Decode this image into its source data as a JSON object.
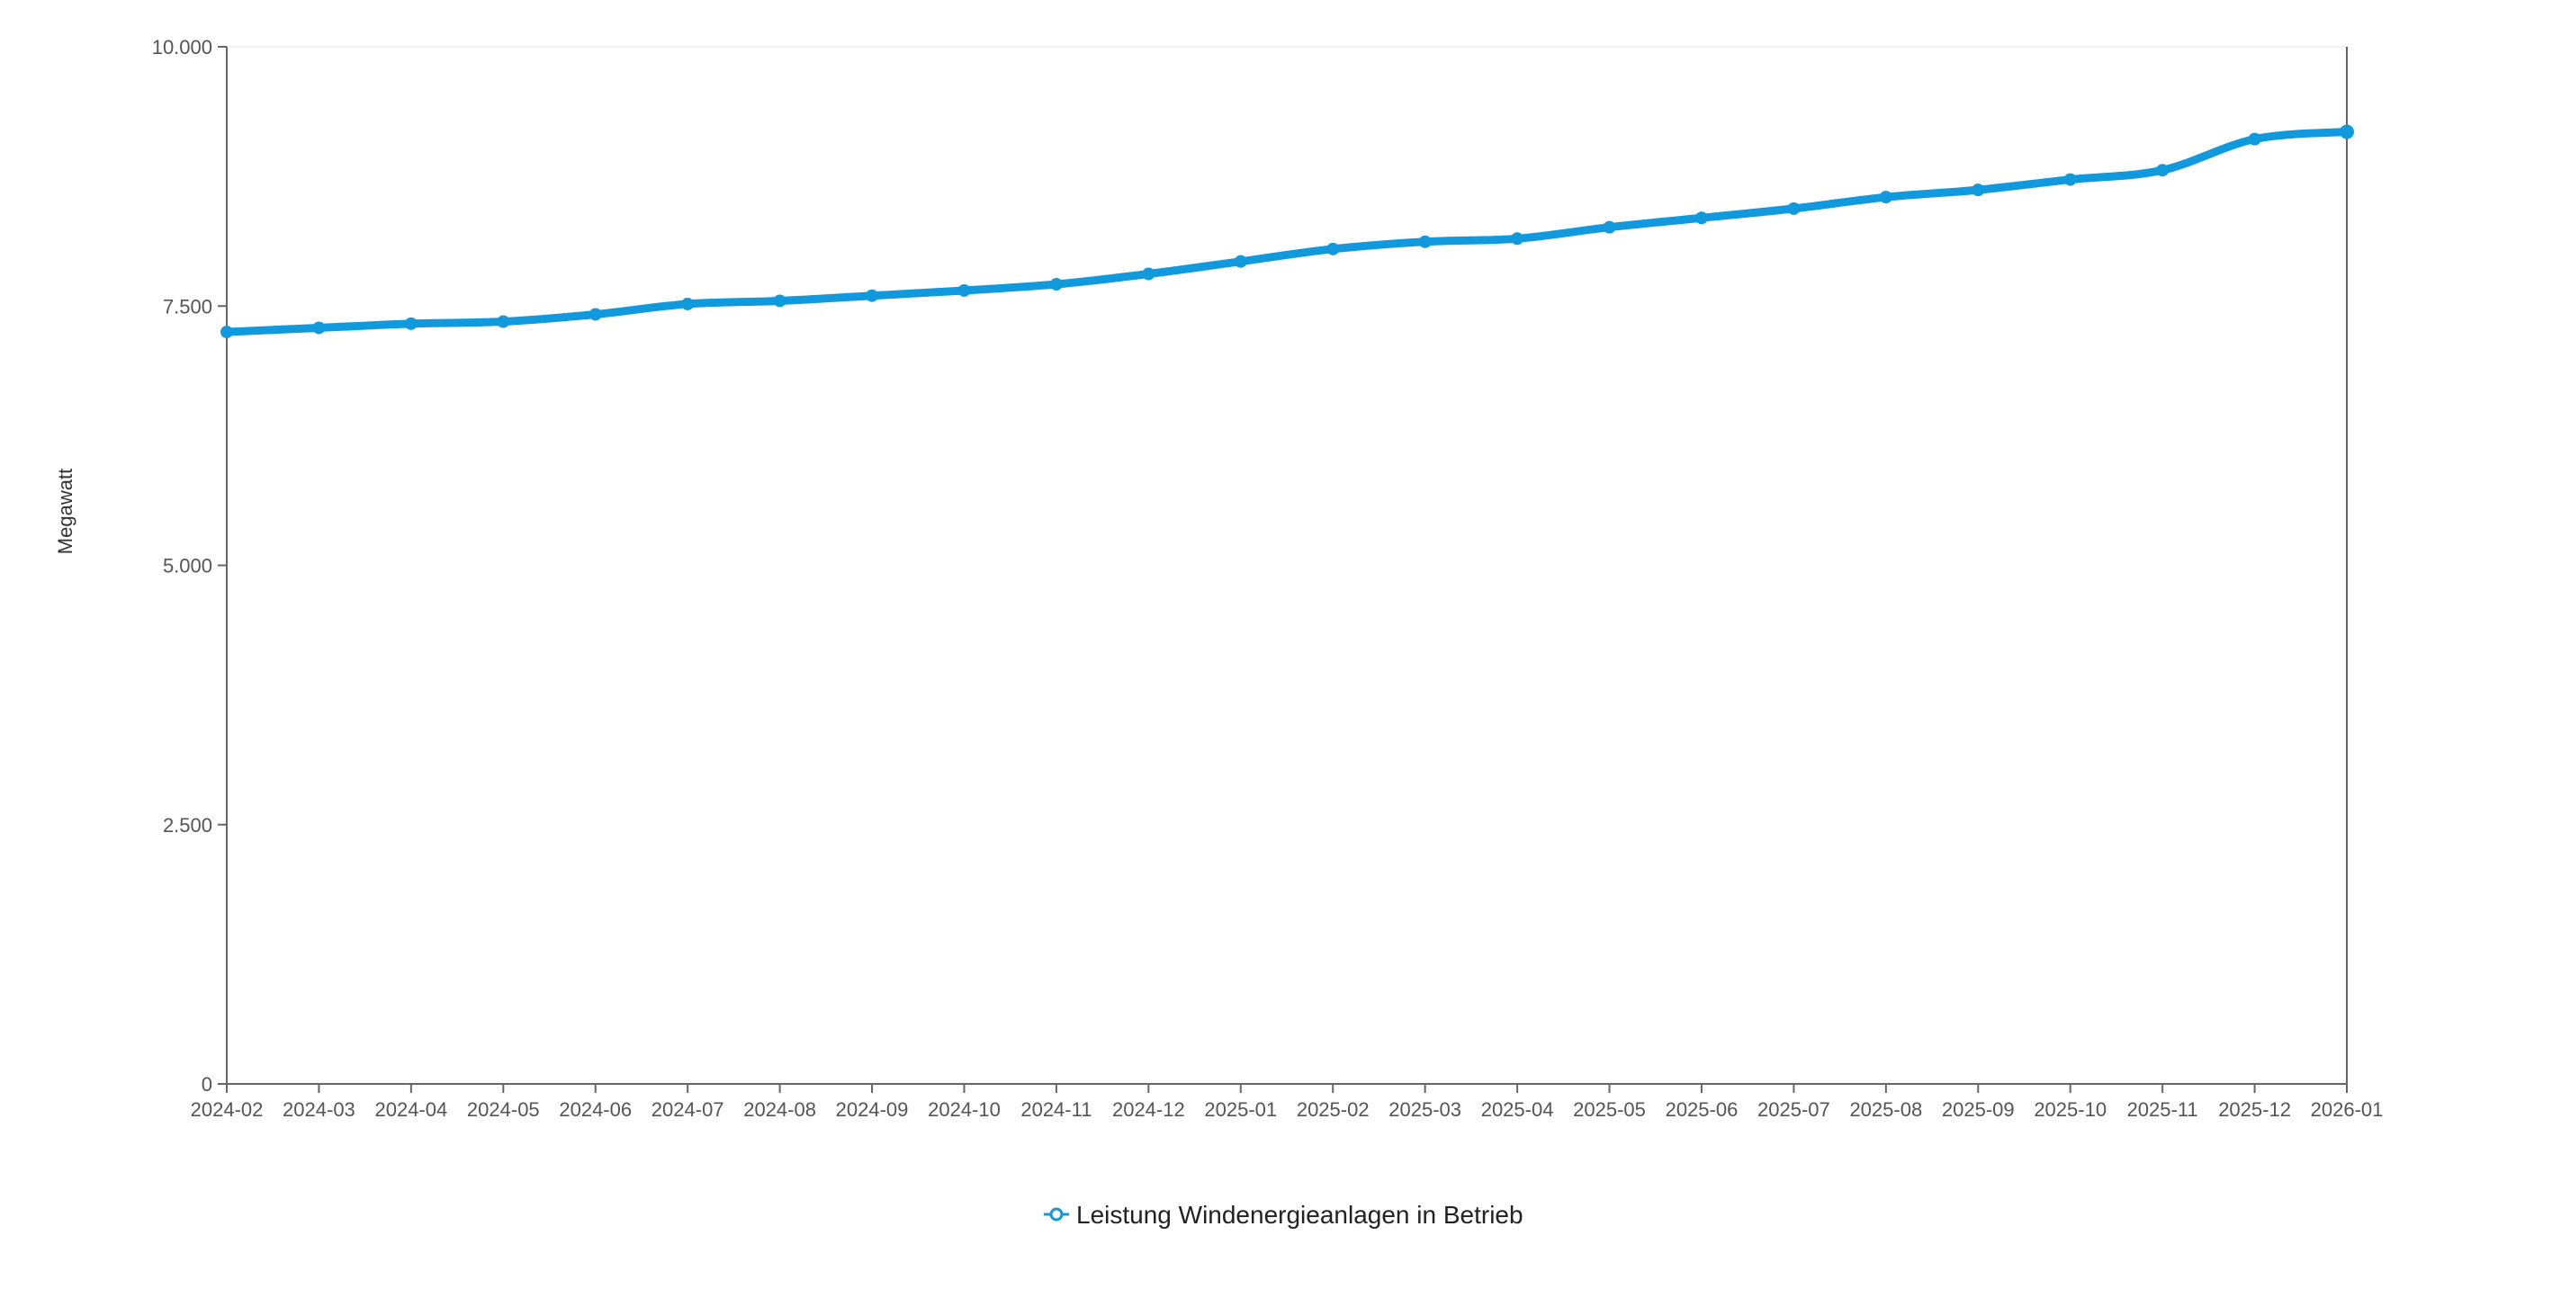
{
  "chart_data": {
    "type": "line",
    "title": "",
    "ylabel": "Megawatt",
    "xlabel": "",
    "ylim": [
      0,
      10000
    ],
    "y_ticks": [
      {
        "value": 0,
        "label": "0"
      },
      {
        "value": 2500,
        "label": "2.500"
      },
      {
        "value": 5000,
        "label": "5.000"
      },
      {
        "value": 7500,
        "label": "7.500"
      },
      {
        "value": 10000,
        "label": "10.000"
      }
    ],
    "categories": [
      "2024-02",
      "2024-03",
      "2024-04",
      "2024-05",
      "2024-06",
      "2024-07",
      "2024-08",
      "2024-09",
      "2024-10",
      "2024-11",
      "2024-12",
      "2025-01",
      "2025-02",
      "2025-03",
      "2025-04",
      "2025-05",
      "2025-06",
      "2025-07",
      "2025-08",
      "2025-09",
      "2025-10",
      "2025-11",
      "2025-12",
      "2026-01"
    ],
    "series": [
      {
        "name": "Leistung Windenergieanlagen in Betrieb",
        "color": "#1199dd",
        "values": [
          7250,
          7290,
          7330,
          7350,
          7420,
          7520,
          7550,
          7600,
          7650,
          7710,
          7810,
          7930,
          8050,
          8120,
          8150,
          8260,
          8350,
          8440,
          8550,
          8620,
          8720,
          8810,
          9110,
          9180
        ]
      }
    ],
    "grid": false,
    "legend_position": "bottom-center"
  }
}
